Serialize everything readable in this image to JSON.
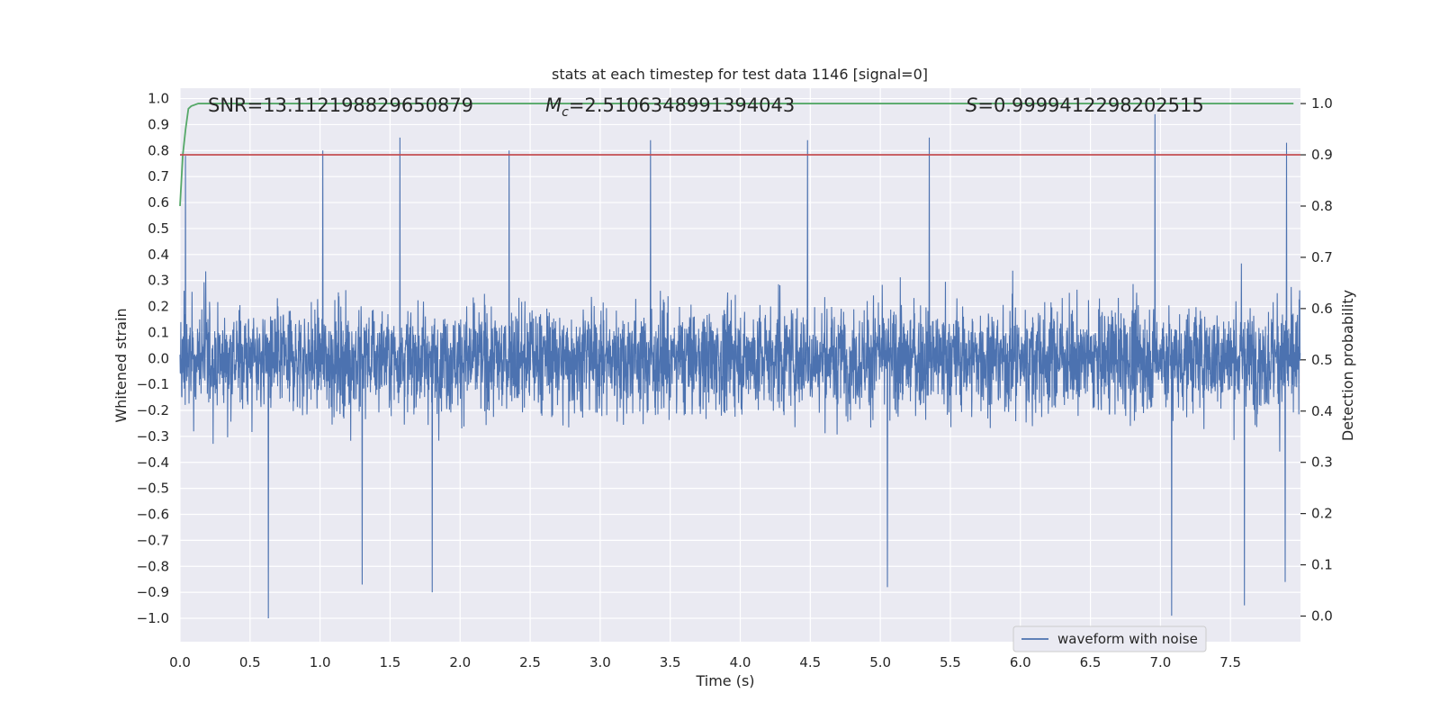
{
  "chart_data": {
    "type": "line",
    "title": "stats at each timestep for test data 1146 [signal=0]",
    "xlabel": "Time (s)",
    "ylabel_left": "Whitened strain",
    "ylabel_right": "Detection probability",
    "xlim": [
      0,
      8
    ],
    "ylim_left": [
      -1.09,
      1.04
    ],
    "ylim_right": [
      -0.05,
      1.03
    ],
    "x_ticks": [
      "0.0",
      "0.5",
      "1.0",
      "1.5",
      "2.0",
      "2.5",
      "3.0",
      "3.5",
      "4.0",
      "4.5",
      "5.0",
      "5.5",
      "6.0",
      "6.5",
      "7.0",
      "7.5"
    ],
    "y_ticks_left": [
      "1.0",
      "0.9",
      "0.8",
      "0.7",
      "0.6",
      "0.5",
      "0.4",
      "0.3",
      "0.2",
      "0.1",
      "0.0",
      "−0.1",
      "−0.2",
      "−0.3",
      "−0.4",
      "−0.5",
      "−0.6",
      "−0.7",
      "−0.8",
      "−0.9",
      "−1.0"
    ],
    "y_ticks_right": [
      "1.0",
      "0.9",
      "0.8",
      "0.7",
      "0.6",
      "0.5",
      "0.4",
      "0.3",
      "0.2",
      "0.1",
      "0.0"
    ],
    "grid": true,
    "legend_position": "bottom-right",
    "annotations": {
      "snr": "SNR=13.112198829650879",
      "mc_symbol": "M",
      "mc_sub": "c",
      "mc_value": "=2.5106348991394043",
      "s_symbol": "S",
      "s_value": "=0.9999412298202515"
    },
    "series": [
      {
        "name": "waveform with noise",
        "axis": "left",
        "color": "#4c72b0",
        "sample_rate_hz": 512,
        "amplitude_typical": 0.42,
        "notable_peaks": [
          {
            "x": 0.04,
            "y": 0.78
          },
          {
            "x": 1.02,
            "y": 0.8
          },
          {
            "x": 1.57,
            "y": 0.85
          },
          {
            "x": 2.35,
            "y": 0.8
          },
          {
            "x": 3.36,
            "y": 0.84
          },
          {
            "x": 4.48,
            "y": 0.84
          },
          {
            "x": 5.35,
            "y": 0.85
          },
          {
            "x": 6.96,
            "y": 0.94
          },
          {
            "x": 7.9,
            "y": 0.83
          }
        ],
        "notable_troughs": [
          {
            "x": 0.63,
            "y": -1.0
          },
          {
            "x": 1.8,
            "y": -0.9
          },
          {
            "x": 1.3,
            "y": -0.87
          },
          {
            "x": 5.05,
            "y": -0.88
          },
          {
            "x": 7.08,
            "y": -0.99
          },
          {
            "x": 7.6,
            "y": -0.95
          },
          {
            "x": 7.89,
            "y": -0.86
          }
        ]
      },
      {
        "name": "",
        "axis": "right",
        "color": "#55a868",
        "x": [
          0.0,
          0.02,
          0.04,
          0.06,
          0.08,
          0.13,
          0.5,
          1.0,
          2.0,
          3.0,
          4.0,
          5.0,
          6.0,
          7.0,
          7.95
        ],
        "y": [
          0.8,
          0.9,
          0.95,
          0.99,
          0.995,
          1.0,
          1.0,
          1.0,
          1.0,
          1.0,
          1.0,
          1.0,
          1.0,
          1.0,
          1.0
        ]
      },
      {
        "name": "",
        "axis": "right",
        "color": "#c44e52",
        "x": [
          0.0,
          8.0
        ],
        "y": [
          0.9,
          0.9
        ]
      }
    ]
  }
}
